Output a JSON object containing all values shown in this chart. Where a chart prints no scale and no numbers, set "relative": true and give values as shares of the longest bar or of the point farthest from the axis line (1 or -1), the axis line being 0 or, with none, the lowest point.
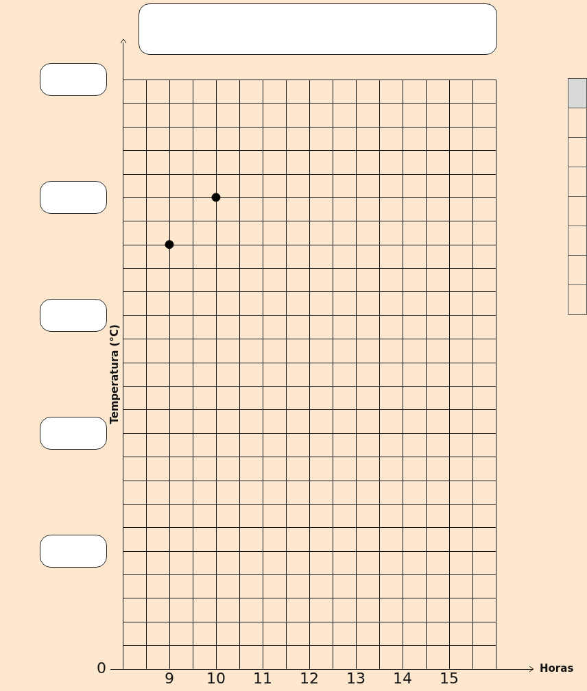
{
  "chart_data": {
    "type": "scatter",
    "xlabel": "Horas",
    "ylabel": "Temperatura (°C)",
    "x": [
      9,
      10
    ],
    "values": [
      0.9,
      1
    ],
    "relative": true,
    "color": "#000000",
    "marker": "circle",
    "xlim": [
      8,
      16
    ],
    "xticks": [
      9,
      10,
      11,
      12,
      13,
      14,
      15
    ],
    "grid": true,
    "annotations": [
      "0"
    ]
  }
}
